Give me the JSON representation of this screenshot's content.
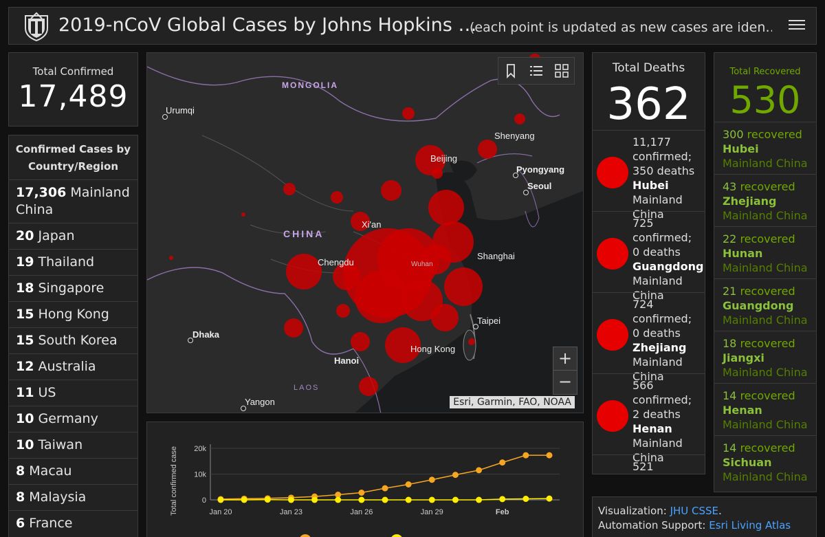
{
  "header": {
    "title": "2019-nCoV Global Cases by Johns Hopkins …",
    "subtitle": "(each point is updated as new cases are iden…"
  },
  "total_confirmed": {
    "label": "Total Confirmed",
    "value": "17,489"
  },
  "country_list": {
    "heading": "Confirmed Cases by Country/Region",
    "items": [
      {
        "count": "17,306",
        "name": "Mainland China"
      },
      {
        "count": "20",
        "name": "Japan"
      },
      {
        "count": "19",
        "name": "Thailand"
      },
      {
        "count": "18",
        "name": "Singapore"
      },
      {
        "count": "15",
        "name": "Hong Kong"
      },
      {
        "count": "15",
        "name": "South Korea"
      },
      {
        "count": "12",
        "name": "Australia"
      },
      {
        "count": "11",
        "name": "US"
      },
      {
        "count": "10",
        "name": "Germany"
      },
      {
        "count": "10",
        "name": "Taiwan"
      },
      {
        "count": "8",
        "name": "Macau"
      },
      {
        "count": "8",
        "name": "Malaysia"
      },
      {
        "count": "6",
        "name": "France"
      }
    ]
  },
  "map": {
    "labels": {
      "mongolia": "MONGOLIA",
      "china": "CHINA",
      "laos": "LAOS",
      "urumqi": "Urumqi",
      "shenyang": "Shenyang",
      "beijing": "Beijing",
      "pyongyang": "Pyongyang",
      "seoul": "Seoul",
      "xian": "Xi'an",
      "chengdu": "Chengdu",
      "wuhan": "Wuhan",
      "shanghai": "Shanghai",
      "taipei": "Taipei",
      "dhaka": "Dhaka",
      "hongkong": "Hong Kong",
      "hanoi": "Hanoi",
      "yangon": "Yangon"
    },
    "attribution": "Esri, Garmin, FAO, NOAA",
    "zoom_in": "+",
    "zoom_out": "−",
    "toolbar_icons": [
      "bookmark-icon",
      "list-icon",
      "qr-grid-icon"
    ],
    "case_color": "#cc0000"
  },
  "chart_data": {
    "type": "line",
    "ylabel": "Total confirmed case",
    "x_tick_labels": [
      "Jan 20",
      "Jan 23",
      "Jan 26",
      "Jan 29",
      "Feb"
    ],
    "y_tick_labels": [
      "20k",
      "10k",
      "0"
    ],
    "ylim": [
      0,
      20000
    ],
    "x": [
      "Jan 20",
      "Jan 21",
      "Jan 22",
      "Jan 23",
      "Jan 24",
      "Jan 25",
      "Jan 26",
      "Jan 27",
      "Jan 28",
      "Jan 29",
      "Jan 30",
      "Jan 31",
      "Feb 1",
      "Feb 2",
      "Feb 3"
    ],
    "series": [
      {
        "color": "#f5a623",
        "values": [
          280,
          440,
          580,
          850,
          1300,
          2000,
          2800,
          4500,
          6000,
          7800,
          9700,
          11500,
          14500,
          17300,
          17300
        ]
      },
      {
        "color": "#ffee00",
        "values": [
          0,
          0,
          100,
          0,
          0,
          0,
          0,
          0,
          0,
          0,
          0,
          0,
          300,
          400,
          500
        ]
      }
    ]
  },
  "total_deaths": {
    "label": "Total Deaths",
    "value": "362",
    "items": [
      {
        "confirmed": "11,177 confirmed;",
        "deaths": "350 deaths",
        "province": "Hubei",
        "region": "Mainland China"
      },
      {
        "confirmed": "725 confirmed;",
        "deaths": "0 deaths",
        "province": "Guangdong",
        "region": "Mainland China"
      },
      {
        "confirmed": "724 confirmed;",
        "deaths": "0 deaths",
        "province": "Zhejiang",
        "region": "Mainland China"
      },
      {
        "confirmed": "566 confirmed;",
        "deaths": "2 deaths",
        "province": "Henan",
        "region": "Mainland China"
      },
      {
        "confirmed": "521",
        "deaths": "",
        "province": "",
        "region": ""
      }
    ]
  },
  "total_recovered": {
    "label": "Total Recovered",
    "value": "530",
    "items": [
      {
        "count": "300",
        "text": "recovered",
        "province": "Hubei",
        "region": "Mainland China"
      },
      {
        "count": "43",
        "text": "recovered",
        "province": "Zhejiang",
        "region": "Mainland China"
      },
      {
        "count": "22",
        "text": "recovered",
        "province": "Hunan",
        "region": "Mainland China"
      },
      {
        "count": "21",
        "text": "recovered",
        "province": "Guangdong",
        "region": "Mainland China"
      },
      {
        "count": "18",
        "text": "recovered",
        "province": "Jiangxi",
        "region": "Mainland China"
      },
      {
        "count": "14",
        "text": "recovered",
        "province": "Henan",
        "region": "Mainland China"
      },
      {
        "count": "14",
        "text": "recovered",
        "province": "Sichuan",
        "region": "Mainland China"
      }
    ]
  },
  "info": {
    "viz_label": "Visualization:",
    "viz_link": "JHU CSSE",
    "auto_label": "Automation Support:",
    "auto_link": "Esri Living Atlas"
  }
}
